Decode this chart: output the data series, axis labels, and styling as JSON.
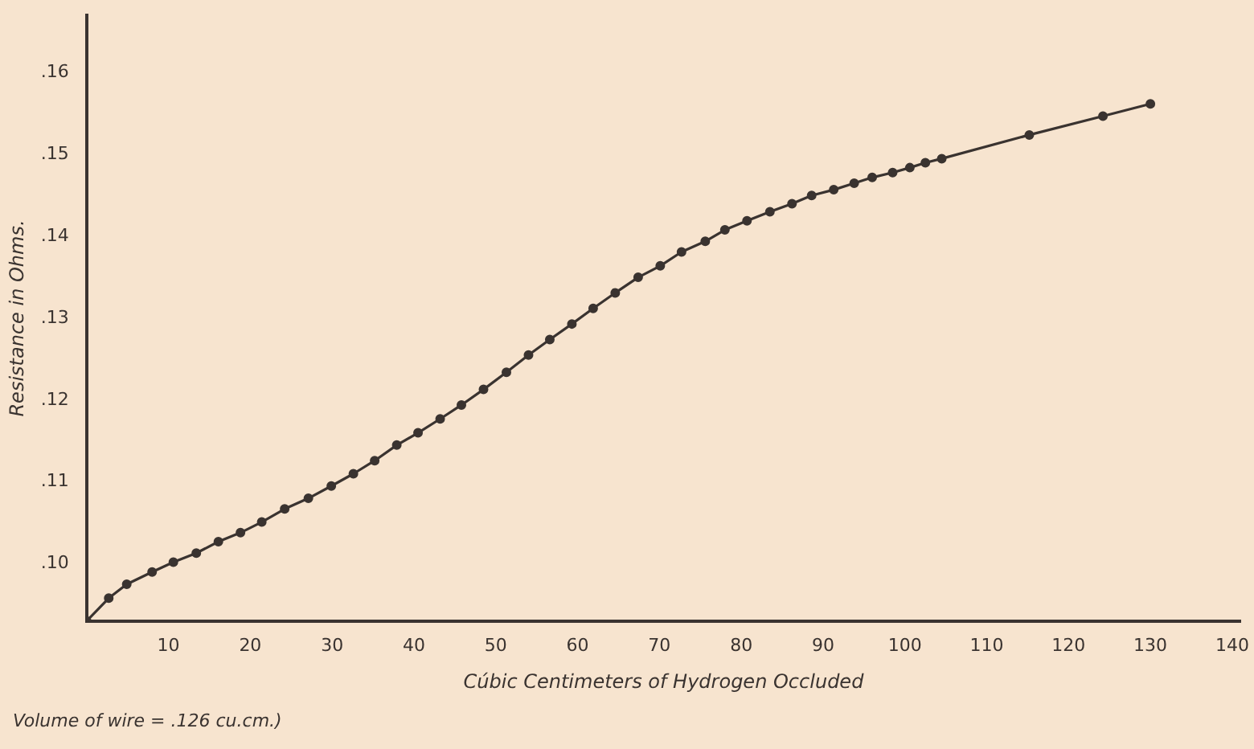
{
  "chart_data": {
    "type": "line",
    "xlabel": "Cúbic Centimeters of Hydrogen Occluded",
    "ylabel": "Resistance in Ohms.",
    "annotations": [
      "Volume of wire = .126 cu.cm.)"
    ],
    "x": [
      0,
      2.7,
      4.9,
      8.0,
      10.6,
      13.4,
      16.1,
      18.8,
      21.4,
      24.2,
      27.1,
      29.9,
      32.6,
      35.2,
      37.9,
      40.5,
      43.2,
      45.8,
      48.5,
      51.3,
      54.0,
      56.6,
      59.3,
      61.9,
      64.6,
      67.4,
      70.1,
      72.7,
      75.6,
      78.0,
      80.7,
      83.5,
      86.2,
      88.6,
      91.3,
      93.8,
      96.0,
      98.5,
      100.6,
      102.5,
      104.5,
      115.2,
      124.2,
      130
    ],
    "series": [
      {
        "color": "#3a3330",
        "values": [
          0.093,
          0.0958,
          0.0975,
          0.099,
          0.1002,
          0.1013,
          0.1027,
          0.1038,
          0.1051,
          0.1067,
          0.108,
          0.1095,
          0.111,
          0.1126,
          0.1145,
          0.116,
          0.1177,
          0.1194,
          0.1213,
          0.1234,
          0.1255,
          0.1274,
          0.1293,
          0.1312,
          0.1331,
          0.135,
          0.1364,
          0.1381,
          0.1394,
          0.1408,
          0.1419,
          0.143,
          0.144,
          0.145,
          0.1457,
          0.1465,
          0.1472,
          0.1478,
          0.1484,
          0.149,
          0.1495,
          0.1524,
          0.1547,
          0.1562
        ]
      }
    ],
    "xlim": [
      0,
      141
    ],
    "ylim": [
      0.093,
      0.167
    ],
    "xticks": [
      10,
      20,
      30,
      40,
      50,
      60,
      70,
      80,
      90,
      100,
      110,
      120,
      130,
      140
    ],
    "yticks": [
      {
        "value": 0.1,
        "label": ".10"
      },
      {
        "value": 0.11,
        "label": ".11"
      },
      {
        "value": 0.12,
        "label": ".12"
      },
      {
        "value": 0.13,
        "label": ".13"
      },
      {
        "value": 0.14,
        "label": ".14"
      },
      {
        "value": 0.15,
        "label": ".15"
      },
      {
        "value": 0.16,
        "label": ".16"
      }
    ],
    "grid": false,
    "legend": false,
    "marker": "circle",
    "line_style": "solid"
  }
}
